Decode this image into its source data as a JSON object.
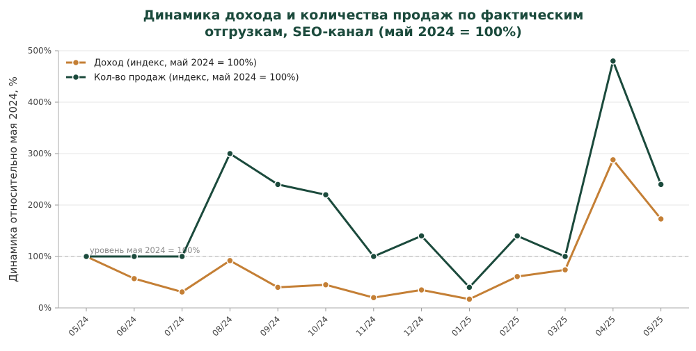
{
  "chart_data": {
    "type": "line",
    "title_lines": [
      "Динамика дохода и количества продаж по фактическим",
      "отгрузкам, SEO-канал (май 2024 = 100%)"
    ],
    "xlabel": "",
    "ylabel": "Динамика относительно мая 2024, %",
    "categories": [
      "05/24",
      "06/24",
      "07/24",
      "08/24",
      "09/24",
      "10/24",
      "11/24",
      "12/24",
      "01/25",
      "02/25",
      "03/25",
      "04/25",
      "05/25"
    ],
    "ylim": [
      0,
      500
    ],
    "yticks": [
      0,
      100,
      200,
      300,
      400,
      500
    ],
    "ytick_labels": [
      "0%",
      "100%",
      "200%",
      "300%",
      "400%",
      "500%"
    ],
    "grid": true,
    "legend_position": "top-left",
    "reference_line": {
      "value": 100,
      "label": "уровень мая 2024 = 100%",
      "color": "#bbbbbb"
    },
    "series": [
      {
        "name": "Доход (индекс, май 2024 = 100%)",
        "color": "#c47f35",
        "values": [
          100,
          57,
          31,
          92,
          40,
          45,
          20,
          35,
          17,
          61,
          74,
          288,
          173
        ]
      },
      {
        "name": "Кол-во продаж (индекс, май 2024 = 100%)",
        "color": "#1b4a3c",
        "values": [
          100,
          100,
          100,
          300,
          240,
          220,
          100,
          140,
          40,
          140,
          100,
          480,
          240
        ]
      }
    ]
  }
}
